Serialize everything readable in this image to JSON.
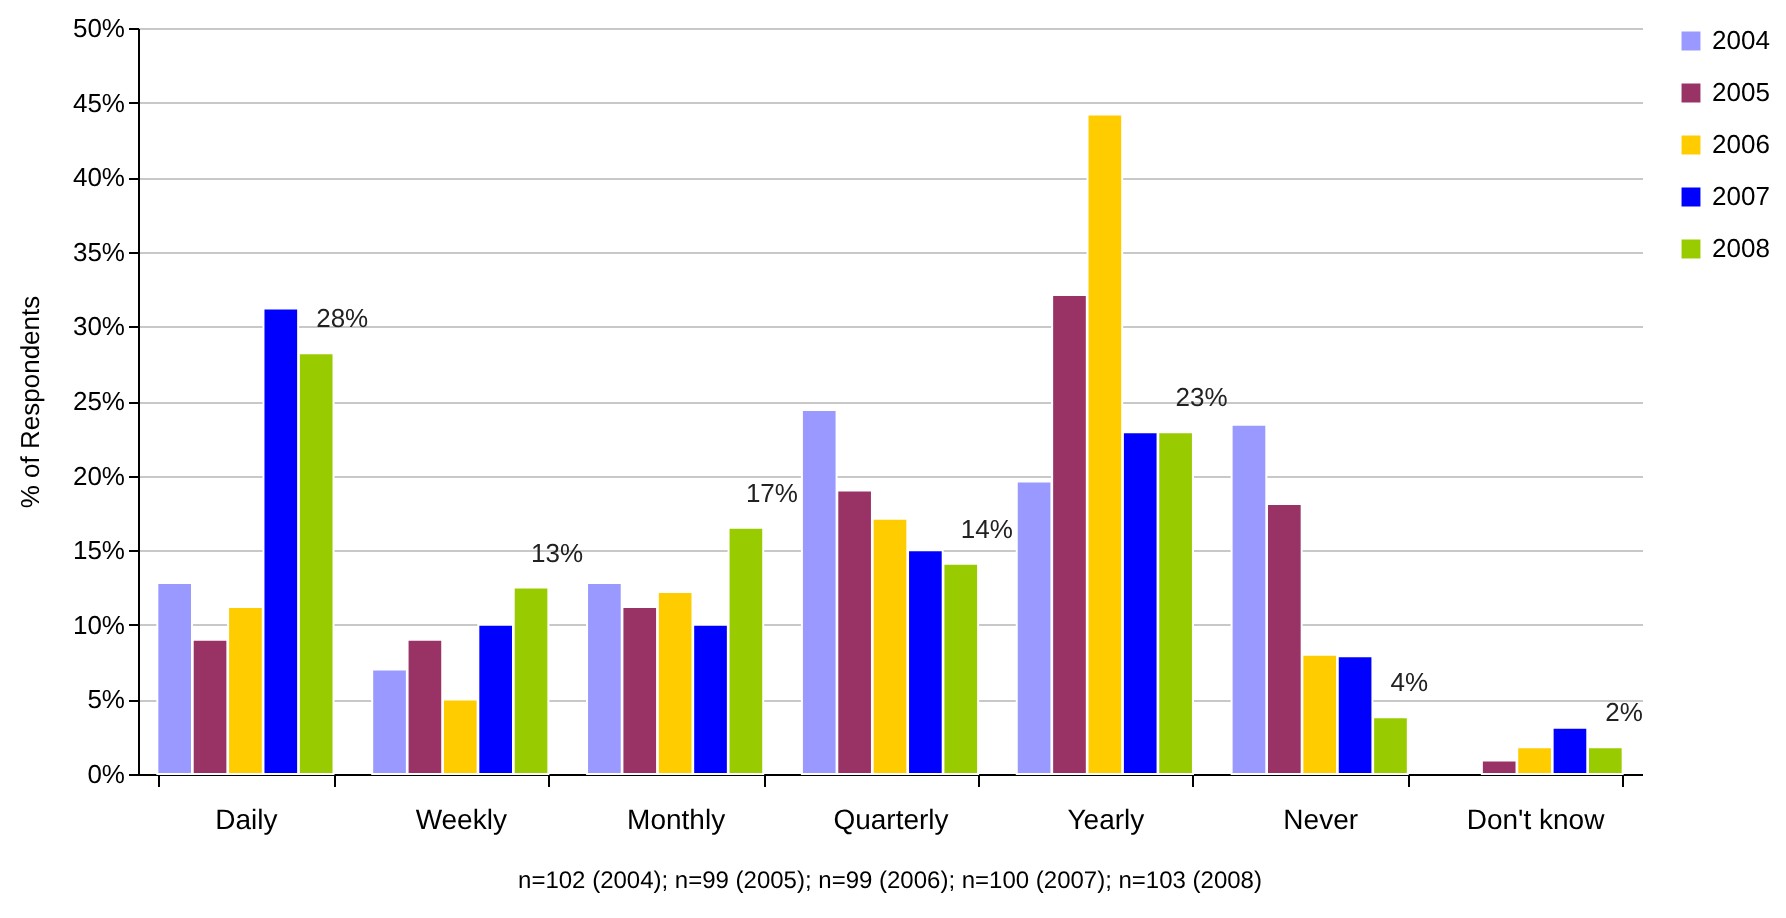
{
  "chart_data": {
    "type": "bar",
    "ylabel": "% of Respondents",
    "categories": [
      "Daily",
      "Weekly",
      "Monthly",
      "Quarterly",
      "Yearly",
      "Never",
      "Don't know"
    ],
    "series": [
      {
        "name": "2004",
        "color": "#9999ff",
        "values": [
          12.8,
          7.0,
          12.8,
          24.4,
          19.6,
          23.4,
          null
        ]
      },
      {
        "name": "2005",
        "color": "#993366",
        "values": [
          9.0,
          9.0,
          11.2,
          19.0,
          32.1,
          18.1,
          0.9
        ]
      },
      {
        "name": "2006",
        "color": "#ffcc00",
        "values": [
          11.2,
          5.0,
          12.2,
          17.1,
          44.2,
          8.0,
          1.8
        ]
      },
      {
        "name": "2007",
        "color": "#0000ff",
        "values": [
          31.2,
          10.0,
          10.0,
          15.0,
          22.9,
          7.9,
          3.1
        ]
      },
      {
        "name": "2008",
        "color": "#99cc00",
        "values": [
          28.2,
          12.5,
          16.5,
          14.1,
          22.9,
          3.8,
          1.8
        ],
        "value_labels": [
          "28%",
          "13%",
          "17%",
          "14%",
          "23%",
          "4%",
          "2%"
        ]
      }
    ],
    "ylim": [
      0,
      50
    ],
    "yticks": [
      {
        "value": 0,
        "label": "0%"
      },
      {
        "value": 5,
        "label": "5%"
      },
      {
        "value": 10,
        "label": "10%"
      },
      {
        "value": 15,
        "label": "15%"
      },
      {
        "value": 20,
        "label": "20%"
      },
      {
        "value": 25,
        "label": "25%"
      },
      {
        "value": 30,
        "label": "30%"
      },
      {
        "value": 35,
        "label": "35%"
      },
      {
        "value": 40,
        "label": "40%"
      },
      {
        "value": 45,
        "label": "45%"
      },
      {
        "value": 50,
        "label": "50%"
      }
    ],
    "grid": "y",
    "legend": "right",
    "annotations": [
      "n=102 (2004); n=99 (2005); n=99 (2006); n=100 (2007); n=103 (2008)"
    ]
  }
}
